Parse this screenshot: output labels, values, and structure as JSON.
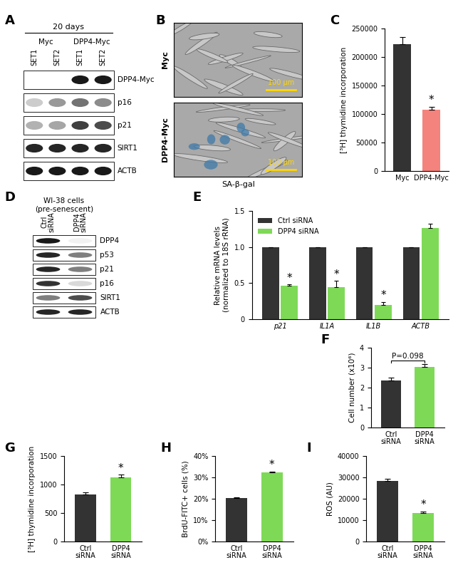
{
  "blots": [
    {
      "panel": "A",
      "header": "20 days",
      "groups": [
        {
          "label": "Myc",
          "lanes": [
            "SET1",
            "SET2"
          ]
        },
        {
          "label": "DPP4-Myc",
          "lanes": [
            "SET1",
            "SET2"
          ]
        }
      ],
      "rows": [
        {
          "label": "DPP4-Myc",
          "bands": [
            0,
            0,
            0.9,
            0.9
          ]
        },
        {
          "label": "p16",
          "bands": [
            0.2,
            0.4,
            0.55,
            0.45
          ]
        },
        {
          "label": "p21",
          "bands": [
            0.3,
            0.35,
            0.75,
            0.7
          ]
        },
        {
          "label": "SIRT1",
          "bands": [
            0.85,
            0.85,
            0.85,
            0.85
          ]
        },
        {
          "label": "ACTB",
          "bands": [
            0.9,
            0.9,
            0.9,
            0.9
          ]
        }
      ]
    },
    {
      "panel": "D",
      "header": "WI-38 cells\n(pre-senescent)",
      "lanes": [
        "Ctrl\nsiRNA",
        "DPP4\nsiRNA"
      ],
      "rows": [
        {
          "label": "DPP4",
          "bands": [
            0.9,
            0.05
          ]
        },
        {
          "label": "p53",
          "bands": [
            0.85,
            0.5
          ]
        },
        {
          "label": "p21",
          "bands": [
            0.85,
            0.5
          ]
        },
        {
          "label": "p16",
          "bands": [
            0.8,
            0.15
          ]
        },
        {
          "label": "SIRT1",
          "bands": [
            0.5,
            0.7
          ]
        },
        {
          "label": "ACTB",
          "bands": [
            0.85,
            0.85
          ]
        }
      ]
    }
  ],
  "images": {
    "panel": "B",
    "rows": [
      "Myc",
      "DPP4-Myc"
    ],
    "scale_bar": "100 μm",
    "caption": "SA-β-gal"
  },
  "chart_data": [
    {
      "panel": "C",
      "type": "bar",
      "categories": [
        "Myc",
        "DPP4-Myc"
      ],
      "values": [
        223000,
        108000
      ],
      "errors": [
        12000,
        5000
      ],
      "colors": [
        "#333333",
        "#f4837d"
      ],
      "ylabel": "[³H] thymidine incorporation",
      "ylim": [
        0,
        250000
      ],
      "yticks": [
        0,
        50000,
        100000,
        150000,
        200000,
        250000
      ],
      "annotations": [
        {
          "category": "DPP4-Myc",
          "text": "*"
        }
      ]
    },
    {
      "panel": "E",
      "type": "bar",
      "categories": [
        "p21",
        "IL1A",
        "IL1B",
        "ACTB"
      ],
      "series": [
        {
          "name": "Ctrl siRNA",
          "color": "#333333",
          "values": [
            1,
            1,
            1,
            1
          ],
          "errors": [
            0,
            0,
            0,
            0
          ]
        },
        {
          "name": "DPP4 siRNA",
          "color": "#7ed957",
          "values": [
            0.46,
            0.44,
            0.2,
            1.26
          ],
          "errors": [
            0.02,
            0.09,
            0.04,
            0.06
          ]
        }
      ],
      "ylabel": "Relative mRNA levels\n(normalized to 18S rRNA)",
      "ylim": [
        0,
        1.5
      ],
      "yticks": [
        0,
        0.5,
        {
          "value": 1,
          "label": "1.0"
        },
        1.5
      ],
      "legend": "upper left",
      "annotations": [
        {
          "series": "DPP4 siRNA",
          "category": "p21",
          "text": "*"
        },
        {
          "series": "DPP4 siRNA",
          "category": "IL1A",
          "text": "*"
        },
        {
          "series": "DPP4 siRNA",
          "category": "IL1B",
          "text": "*"
        }
      ]
    },
    {
      "panel": "F",
      "type": "bar",
      "categories": [
        "Ctrl\nsiRNA",
        "DPP4\nsiRNA"
      ],
      "values": [
        2.35,
        3.05
      ],
      "errors": [
        0.15,
        0.12
      ],
      "colors": [
        "#333333",
        "#7ed957"
      ],
      "ylabel": "Cell number (x10⁶)",
      "ylim": [
        0,
        4
      ],
      "yticks": [
        0,
        1,
        2,
        3,
        4
      ],
      "annotations": [
        {
          "categories": [
            "Ctrl\nsiRNA",
            "DPP4\nsiRNA"
          ],
          "text": "P=0.098"
        }
      ]
    },
    {
      "panel": "G",
      "type": "bar",
      "categories": [
        "Ctrl\nsiRNA",
        "DPP4\nsiRNA"
      ],
      "values": [
        820,
        1120
      ],
      "errors": [
        40,
        50
      ],
      "colors": [
        "#333333",
        "#7ed957"
      ],
      "ylabel": "[³H] thymidine incorporation",
      "ylim": [
        0,
        1500
      ],
      "yticks": [
        0,
        500,
        1000,
        1500
      ],
      "annotations": [
        {
          "category": "DPP4\nsiRNA",
          "text": "*"
        }
      ]
    },
    {
      "panel": "H",
      "type": "bar",
      "categories": [
        "Ctrl\nsiRNA",
        "DPP4\nsiRNA"
      ],
      "values": [
        20.2,
        32.5
      ],
      "errors": [
        0.4,
        0.3
      ],
      "colors": [
        "#333333",
        "#7ed957"
      ],
      "ylabel": "BrdU-FITC+ cells (%)",
      "ylim": [
        0,
        40
      ],
      "yticks": [
        {
          "value": 0,
          "label": "0%"
        },
        {
          "value": 10,
          "label": "10%"
        },
        {
          "value": 20,
          "label": "20%"
        },
        {
          "value": 30,
          "label": "30%"
        },
        {
          "value": 40,
          "label": "40%"
        }
      ],
      "annotations": [
        {
          "category": "DPP4\nsiRNA",
          "text": "*"
        }
      ]
    },
    {
      "panel": "I",
      "type": "bar",
      "categories": [
        "Ctrl\nsiRNA",
        "DPP4\nsiRNA"
      ],
      "values": [
        28500,
        13500
      ],
      "errors": [
        900,
        600
      ],
      "colors": [
        "#333333",
        "#7ed957"
      ],
      "ylabel": "ROS (AU)",
      "ylim": [
        0,
        40000
      ],
      "yticks": [
        0,
        10000,
        20000,
        30000,
        40000
      ],
      "annotations": [
        {
          "category": "DPP4\nsiRNA",
          "text": "*"
        }
      ]
    }
  ]
}
